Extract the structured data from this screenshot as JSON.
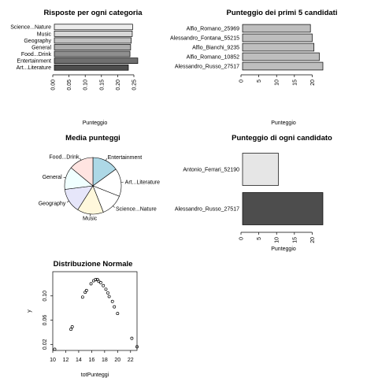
{
  "charts": [
    {
      "type": "barh",
      "title": "Risposte per ogni categoria",
      "xlabel": "Punteggio",
      "xlim": [
        0,
        0.25
      ],
      "xticks": [
        "0.00",
        "0.05",
        "0.10",
        "0.15",
        "0.20",
        "0.25"
      ],
      "categories": [
        "Science...Nature",
        "Music",
        "Geography",
        "General",
        "Food...Drink",
        "Entertainment",
        "Art...Literature"
      ],
      "values": [
        0.246,
        0.245,
        0.242,
        0.24,
        0.238,
        0.262,
        0.233
      ],
      "colors": [
        "#ececec",
        "#d7d7d7",
        "#c2c2c2",
        "#adadad",
        "#8f8f8f",
        "#6f6f6f",
        "#4d4d4d"
      ]
    },
    {
      "type": "barh",
      "title": "Punteggio dei primi 5 candidati",
      "xlabel": "Punteggio",
      "xlim": [
        0,
        23
      ],
      "xticks": [
        "0",
        "5",
        "10",
        "15",
        "20"
      ],
      "categories": [
        "Alfio_Romano_25969",
        "Alessandro_Fontana_55215",
        "Alfio_Bianchi_9235",
        "Alfio_Romano_10852",
        "Alessandro_Russo_27517"
      ],
      "values": [
        19.5,
        20,
        20.5,
        22,
        23
      ],
      "colors": [
        "#bebebe",
        "#bebebe",
        "#bebebe",
        "#bebebe",
        "#bebebe"
      ]
    },
    {
      "type": "pie",
      "title": "Media punteggi",
      "labels": [
        "Entertainment",
        "Art...Literature",
        "Science...Nature",
        "Music",
        "Geography",
        "General",
        "Food...Drink"
      ],
      "values": [
        15,
        16,
        13,
        15,
        14,
        13,
        14
      ],
      "colors": [
        "#add8e6",
        "#ffffff",
        "#ffffff",
        "#fff8dc",
        "#e6e6fa",
        "#f0ffff",
        "#ffe4e1"
      ]
    },
    {
      "type": "barh",
      "title": "Punteggio di ogni candidato",
      "xlabel": "Punteggio",
      "xlim": [
        0,
        23
      ],
      "xticks": [
        "0",
        "5",
        "10",
        "15",
        "20"
      ],
      "categories": [
        "Antonio_Ferrari_52190",
        "Alessandro_Russo_27517"
      ],
      "values": [
        10.5,
        23
      ],
      "colors": [
        "#e6e6e6",
        "#4d4d4d"
      ]
    },
    {
      "type": "scatter",
      "title": "Distribuzione Normale",
      "xlabel": "totPunteggi",
      "ylabel": "y",
      "xlim": [
        10,
        23
      ],
      "ylim": [
        0.01,
        0.14
      ],
      "xticks": [
        "10",
        "12",
        "14",
        "16",
        "18",
        "20",
        "22"
      ],
      "yticks": [
        "0.02",
        "0.06",
        "0.10"
      ],
      "x": [
        10.3,
        12.8,
        13.0,
        14.6,
        15.0,
        15.2,
        15.9,
        16.3,
        16.6,
        16.9,
        17.1,
        17.4,
        17.8,
        18.2,
        18.5,
        18.7,
        19.2,
        19.5,
        20.0,
        22.2,
        23.0
      ],
      "y": [
        0.012,
        0.045,
        0.049,
        0.098,
        0.106,
        0.109,
        0.12,
        0.125,
        0.127,
        0.127,
        0.124,
        0.122,
        0.117,
        0.111,
        0.105,
        0.099,
        0.091,
        0.082,
        0.071,
        0.03,
        0.016
      ]
    }
  ]
}
